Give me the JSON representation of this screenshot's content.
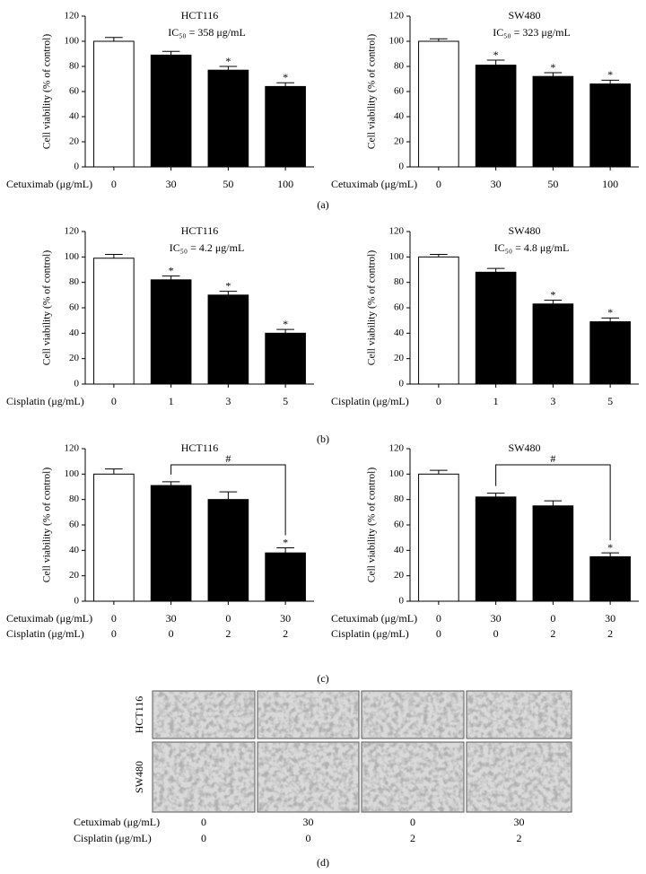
{
  "chart_data": [
    {
      "type": "bar",
      "title": "HCT116",
      "annotation": "IC₅₀ = 358 μg/mL",
      "ylabel": "Cell viability (% of control)",
      "xlabel": "Cetuximab (μg/mL)",
      "categories": [
        "0",
        "30",
        "50",
        "100"
      ],
      "values": [
        100,
        89,
        77,
        64
      ],
      "errors": [
        3,
        3,
        3,
        3
      ],
      "colors": [
        "#ffffff",
        "#000000",
        "#000000",
        "#000000"
      ],
      "significance": [
        null,
        null,
        "*",
        "*"
      ],
      "ylim": [
        0,
        120
      ],
      "yticks": [
        0,
        20,
        40,
        60,
        80,
        100,
        120
      ]
    },
    {
      "type": "bar",
      "title": "SW480",
      "annotation": "IC₅₀ = 323 μg/mL",
      "ylabel": "Cell viability (% of control)",
      "xlabel": "Cetuximab (μg/mL)",
      "categories": [
        "0",
        "30",
        "50",
        "100"
      ],
      "values": [
        100,
        81,
        72,
        66
      ],
      "errors": [
        2,
        4,
        3,
        3
      ],
      "colors": [
        "#ffffff",
        "#000000",
        "#000000",
        "#000000"
      ],
      "significance": [
        null,
        "*",
        "*",
        "*"
      ],
      "ylim": [
        0,
        120
      ],
      "yticks": [
        0,
        20,
        40,
        60,
        80,
        100,
        120
      ]
    },
    {
      "type": "bar",
      "title": "HCT116",
      "annotation": "IC₅₀ = 4.2 μg/mL",
      "ylabel": "Cell viability (% of control)",
      "xlabel": "Cisplatin (μg/mL)",
      "categories": [
        "0",
        "1",
        "3",
        "5"
      ],
      "values": [
        99,
        82,
        70,
        40
      ],
      "errors": [
        3,
        3,
        3,
        3
      ],
      "colors": [
        "#ffffff",
        "#000000",
        "#000000",
        "#000000"
      ],
      "significance": [
        null,
        "*",
        "*",
        "*"
      ],
      "ylim": [
        0,
        120
      ],
      "yticks": [
        0,
        20,
        40,
        60,
        80,
        100,
        120
      ]
    },
    {
      "type": "bar",
      "title": "SW480",
      "annotation": "IC₅₀ = 4.8 μg/mL",
      "ylabel": "Cell viability (% of control)",
      "xlabel": "Cisplatin (μg/mL)",
      "categories": [
        "0",
        "1",
        "3",
        "5"
      ],
      "values": [
        100,
        88,
        63,
        49
      ],
      "errors": [
        2,
        3,
        3,
        3
      ],
      "colors": [
        "#ffffff",
        "#000000",
        "#000000",
        "#000000"
      ],
      "significance": [
        null,
        null,
        "*",
        "*"
      ],
      "ylim": [
        0,
        120
      ],
      "yticks": [
        0,
        20,
        40,
        60,
        80,
        100,
        120
      ]
    },
    {
      "type": "bar",
      "title": "HCT116",
      "ylabel": "Cell viability (% of control)",
      "xlabel": "Cetuximab (μg/mL)",
      "categories": [
        "0",
        "30",
        "0",
        "30"
      ],
      "xlabel2": "Cisplatin (μg/mL)",
      "categories2": [
        "0",
        "0",
        "2",
        "2"
      ],
      "values": [
        100,
        91,
        80,
        38
      ],
      "errors": [
        4,
        3,
        6,
        4
      ],
      "colors": [
        "#ffffff",
        "#000000",
        "#000000",
        "#000000"
      ],
      "significance": [
        null,
        null,
        null,
        "*"
      ],
      "bracket": {
        "label": "#",
        "between": [
          1,
          3
        ]
      },
      "ylim": [
        0,
        120
      ],
      "yticks": [
        0,
        20,
        40,
        60,
        80,
        100,
        120
      ]
    },
    {
      "type": "bar",
      "title": "SW480",
      "ylabel": "Cell viability (% of control)",
      "xlabel": "Cetuximab (μg/mL)",
      "categories": [
        "0",
        "30",
        "0",
        "30"
      ],
      "xlabel2": "Cisplatin (μg/mL)",
      "categories2": [
        "0",
        "0",
        "2",
        "2"
      ],
      "values": [
        100,
        82,
        75,
        35
      ],
      "errors": [
        3,
        3,
        4,
        3
      ],
      "colors": [
        "#ffffff",
        "#000000",
        "#000000",
        "#000000"
      ],
      "significance": [
        null,
        null,
        null,
        "*"
      ],
      "bracket": {
        "label": "#",
        "between": [
          1,
          3
        ]
      },
      "ylim": [
        0,
        120
      ],
      "yticks": [
        0,
        20,
        40,
        60,
        80,
        100,
        120
      ]
    }
  ],
  "panel_labels": [
    "(a)",
    "(b)",
    "(c)",
    "(d)"
  ],
  "micrographs": {
    "row_labels": [
      "HCT116",
      "SW480"
    ],
    "conditions": [
      {
        "label": "Cetuximab (μg/mL)",
        "values": [
          "0",
          "30",
          "0",
          "30"
        ]
      },
      {
        "label": "Cisplatin (μg/mL)",
        "values": [
          "0",
          "0",
          "2",
          "2"
        ]
      }
    ]
  }
}
